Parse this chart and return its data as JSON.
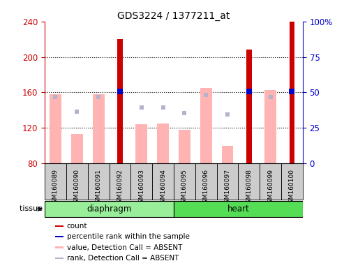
{
  "title": "GDS3224 / 1377211_at",
  "samples": [
    "GSM160089",
    "GSM160090",
    "GSM160091",
    "GSM160092",
    "GSM160093",
    "GSM160094",
    "GSM160095",
    "GSM160096",
    "GSM160097",
    "GSM160098",
    "GSM160099",
    "GSM160100"
  ],
  "tissue_groups": [
    {
      "label": "diaphragm",
      "start": 0,
      "end": 5
    },
    {
      "label": "heart",
      "start": 6,
      "end": 11
    }
  ],
  "count_values": [
    null,
    null,
    null,
    220,
    null,
    null,
    null,
    null,
    null,
    208,
    null,
    240
  ],
  "value_absent": [
    158,
    113,
    158,
    null,
    124,
    125,
    118,
    165,
    100,
    null,
    163,
    null
  ],
  "rank_absent": [
    155,
    138,
    155,
    160,
    143,
    143,
    137,
    157,
    135,
    null,
    155,
    null
  ],
  "percentile_rank": [
    null,
    null,
    null,
    161,
    null,
    null,
    null,
    null,
    null,
    161,
    null,
    161
  ],
  "ylim_left": [
    80,
    240
  ],
  "ylim_right": [
    0,
    100
  ],
  "yticks_left": [
    80,
    120,
    160,
    200,
    240
  ],
  "yticks_right": [
    0,
    25,
    50,
    75,
    100
  ],
  "ytick_labels_right": [
    "0",
    "25",
    "50",
    "75",
    "100%"
  ],
  "color_count": "#cc0000",
  "color_percentile": "#0000cc",
  "color_value_absent": "#ffb3b3",
  "color_rank_absent": "#b3b3cc",
  "color_tissue_diaphragm": "#99ee99",
  "color_tissue_heart": "#55dd55",
  "color_axis_left": "#cc0000",
  "color_axis_right": "#0000cc",
  "color_sample_bg": "#cccccc",
  "color_plot_bg": "#ffffff",
  "count_bar_width": 0.25,
  "value_bar_width": 0.55,
  "rank_marker_size": 5,
  "percentile_marker_size": 6
}
